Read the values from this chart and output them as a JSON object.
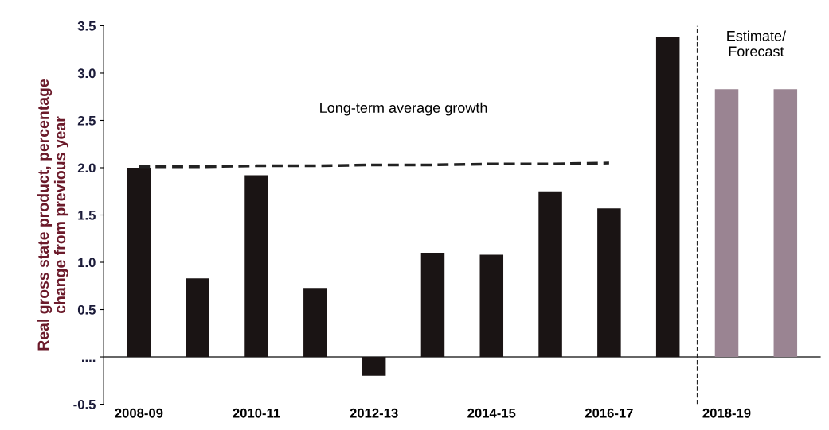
{
  "chart_data": {
    "type": "bar",
    "ylabel": "Real gross state product, percentage\nchange from previous year",
    "categories": [
      "2008-09",
      null,
      "2010-11",
      null,
      "2012-13",
      null,
      "2014-15",
      null,
      "2016-17",
      null,
      "2018-19",
      null
    ],
    "series": [
      {
        "values": [
          2.0,
          0.83,
          1.92,
          0.73,
          -0.2,
          1.1,
          1.08,
          1.75,
          1.57,
          3.38,
          2.83,
          2.83
        ],
        "colors": [
          "#1a1414",
          "#1a1414",
          "#1a1414",
          "#1a1414",
          "#1a1414",
          "#1a1414",
          "#1a1414",
          "#1a1414",
          "#1a1414",
          "#1a1414",
          "#9a8492",
          "#9a8492"
        ]
      },
      {
        "type": "line",
        "color": "#222222",
        "line_style": "dashed",
        "values": [
          2.01,
          2.01,
          2.02,
          2.02,
          2.03,
          2.03,
          2.04,
          2.04,
          2.05,
          null,
          null,
          null
        ]
      }
    ],
    "ylim": [
      -0.5,
      3.5
    ],
    "yticks": [
      -0.5,
      {
        "value": 0,
        "label": "...."
      },
      0.5,
      {
        "value": 1,
        "label": "1.0"
      },
      1.5,
      {
        "value": 2,
        "label": "2.0"
      },
      2.5,
      {
        "value": 3,
        "label": "3.0"
      },
      3.5
    ],
    "ref_lines": [
      {
        "axis": "x",
        "value": "2018-19",
        "label": "Estimate/\nForecast",
        "line_style": "dashed",
        "color": "#222222"
      }
    ],
    "annotations": [
      "Long-term average growth"
    ],
    "grid": false
  }
}
